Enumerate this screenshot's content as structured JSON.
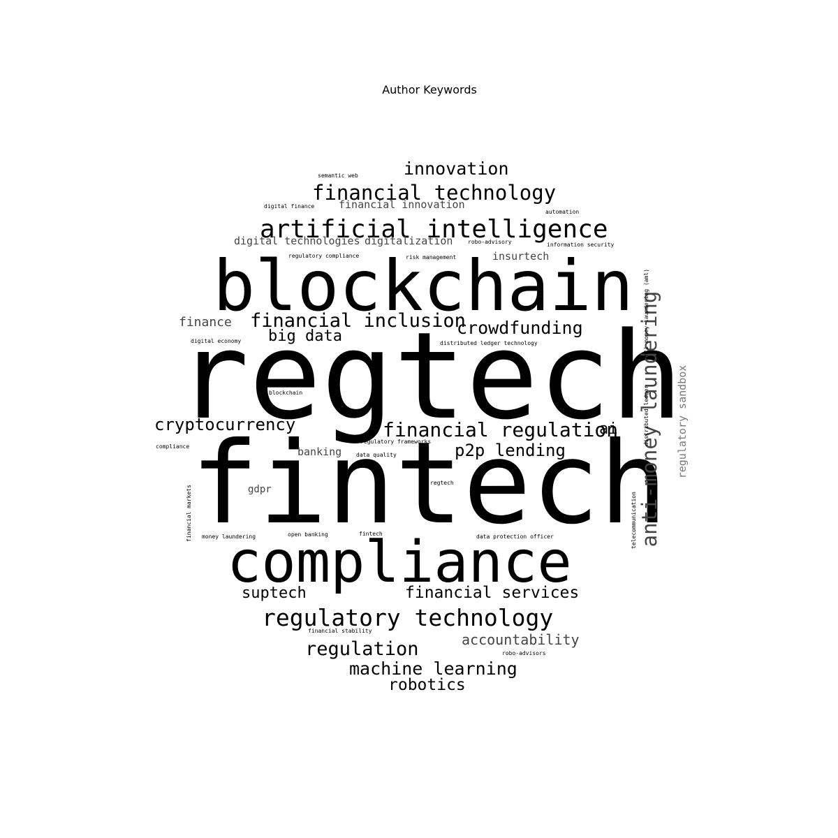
{
  "title": "Author Keywords",
  "colors": {
    "background": "#ffffff",
    "text": "#000000",
    "mid": "#444444",
    "light": "#777777"
  },
  "words": [
    {
      "text": "regtech",
      "weight": 100,
      "vertical": false
    },
    {
      "text": "fintech",
      "weight": 96,
      "vertical": false
    },
    {
      "text": "blockchain",
      "weight": 62,
      "vertical": false
    },
    {
      "text": "compliance",
      "weight": 56,
      "vertical": false
    },
    {
      "text": "artificial intelligence",
      "weight": 24,
      "vertical": false
    },
    {
      "text": "regulatory technology",
      "weight": 23,
      "vertical": false
    },
    {
      "text": "anti-money laundering",
      "weight": 21,
      "vertical": true
    },
    {
      "text": "financial technology",
      "weight": 20,
      "vertical": false
    },
    {
      "text": "financial regulation",
      "weight": 19,
      "vertical": false
    },
    {
      "text": "financial inclusion",
      "weight": 18,
      "vertical": false
    },
    {
      "text": "regulation",
      "weight": 18,
      "vertical": false
    },
    {
      "text": "innovation",
      "weight": 17,
      "vertical": false
    },
    {
      "text": "crowdfunding",
      "weight": 17,
      "vertical": false
    },
    {
      "text": "machine learning",
      "weight": 17,
      "vertical": false
    },
    {
      "text": "cryptocurrency",
      "weight": 16,
      "vertical": false
    },
    {
      "text": "p2p lending",
      "weight": 16,
      "vertical": false
    },
    {
      "text": "financial services",
      "weight": 16,
      "vertical": false
    },
    {
      "text": "big data",
      "weight": 15,
      "vertical": false
    },
    {
      "text": "suptech",
      "weight": 15,
      "vertical": false
    },
    {
      "text": "robotics",
      "weight": 15,
      "vertical": false
    },
    {
      "text": "accountability",
      "weight": 14,
      "vertical": false
    },
    {
      "text": "ai",
      "weight": 14,
      "vertical": false
    },
    {
      "text": "finance",
      "weight": 13,
      "vertical": false
    },
    {
      "text": "regulatory sandbox",
      "weight": 11,
      "vertical": true
    },
    {
      "text": "digital technologies",
      "weight": 10,
      "vertical": false
    },
    {
      "text": "digitalization",
      "weight": 10,
      "vertical": false
    },
    {
      "text": "financial innovation",
      "weight": 10,
      "vertical": false
    },
    {
      "text": "insurtech",
      "weight": 10,
      "vertical": false
    },
    {
      "text": "banking",
      "weight": 10,
      "vertical": false
    },
    {
      "text": "gdpr",
      "weight": 10,
      "vertical": false
    },
    {
      "text": "semantic web",
      "weight": 6,
      "vertical": false
    },
    {
      "text": "digital finance",
      "weight": 6,
      "vertical": false
    },
    {
      "text": "automation",
      "weight": 6,
      "vertical": false
    },
    {
      "text": "robo-advisory",
      "weight": 6,
      "vertical": false
    },
    {
      "text": "information security",
      "weight": 6,
      "vertical": false
    },
    {
      "text": "regulatory compliance",
      "weight": 6,
      "vertical": false
    },
    {
      "text": "risk management",
      "weight": 6,
      "vertical": false
    },
    {
      "text": "anti money laundering (aml)",
      "weight": 6,
      "vertical": true
    },
    {
      "text": "digital economy",
      "weight": 6,
      "vertical": false
    },
    {
      "text": "distributed ledger technology",
      "weight": 6,
      "vertical": false
    },
    {
      "text": "distributed ledger",
      "weight": 6,
      "vertical": true
    },
    {
      "text": "blockchain",
      "weight": 6,
      "vertical": false
    },
    {
      "text": "compliance",
      "weight": 6,
      "vertical": false
    },
    {
      "text": "regulatory frameworks",
      "weight": 6,
      "vertical": false
    },
    {
      "text": "data quality",
      "weight": 6,
      "vertical": false
    },
    {
      "text": "regtech",
      "weight": 6,
      "vertical": false
    },
    {
      "text": "financial markets",
      "weight": 6,
      "vertical": true
    },
    {
      "text": "money laundering",
      "weight": 6,
      "vertical": false
    },
    {
      "text": "open banking",
      "weight": 6,
      "vertical": false
    },
    {
      "text": "fintech",
      "weight": 6,
      "vertical": false
    },
    {
      "text": "data protection officer",
      "weight": 6,
      "vertical": false
    },
    {
      "text": "telecommunication",
      "weight": 6,
      "vertical": true
    },
    {
      "text": "financial stability",
      "weight": 6,
      "vertical": false
    },
    {
      "text": "robo-advisors",
      "weight": 6,
      "vertical": false
    }
  ]
}
